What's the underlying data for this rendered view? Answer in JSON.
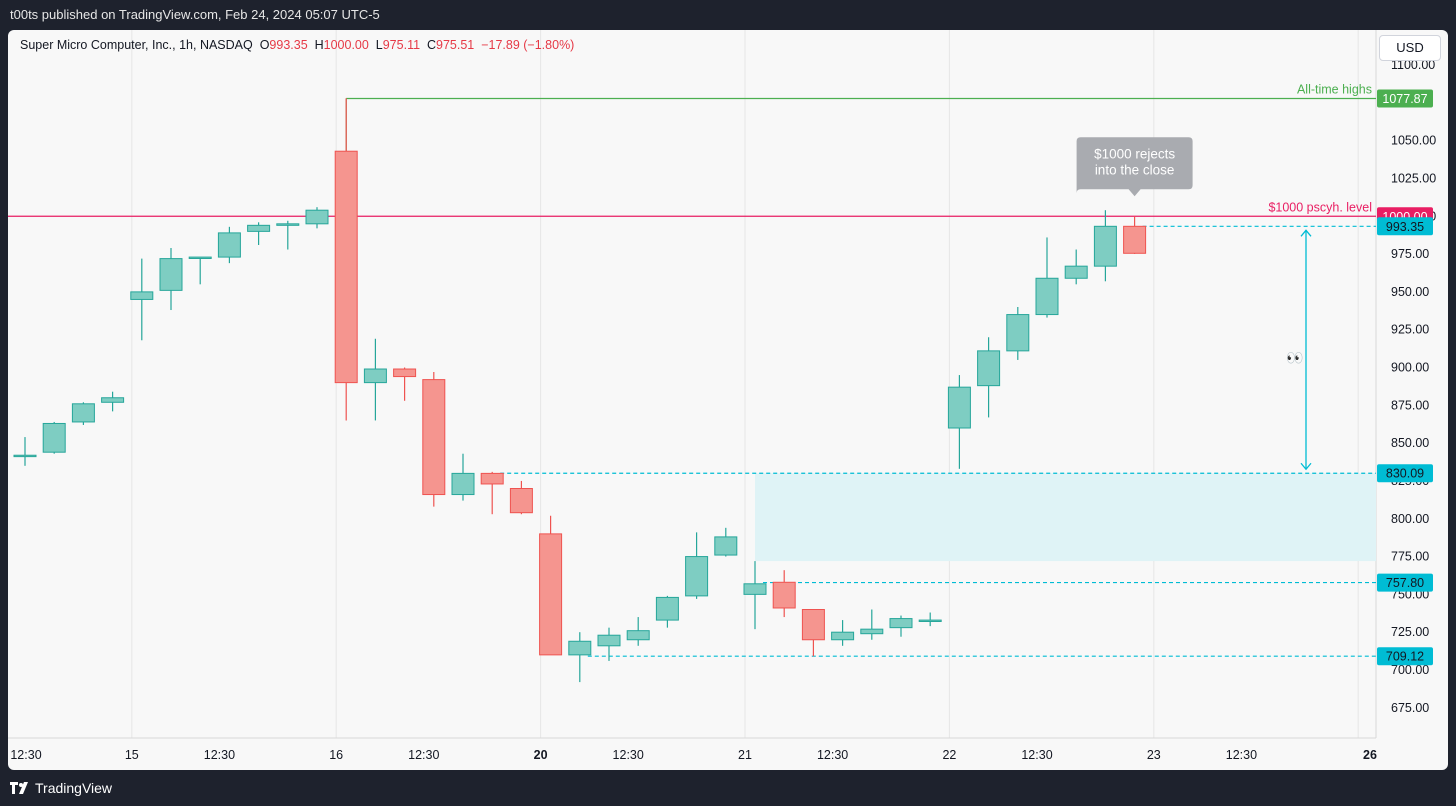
{
  "header": {
    "published": "t00ts published on TradingView.com, Feb 24, 2024 05:07 UTC-5"
  },
  "legend": {
    "symbol": "Super Micro Computer, Inc., 1h, NASDAQ",
    "o_label": "O",
    "o": "993.35",
    "h_label": "H",
    "h": "1000.00",
    "l_label": "L",
    "l": "975.11",
    "c_label": "C",
    "c": "975.51",
    "chg": "−17.89 (−1.80%)"
  },
  "currency": "USD",
  "footer": {
    "brand": "TradingView"
  },
  "colors": {
    "up": "#26a69a",
    "down": "#ef5350",
    "up_fill": "#7ecdc2",
    "down_fill": "#f5958f",
    "level": "#e91e63",
    "ath": "#4caf50",
    "cyan": "#00bcd4",
    "zone": "#dff3f6"
  },
  "chart_data": {
    "type": "candlestick",
    "title": "",
    "ylim": [
      660,
      1105
    ],
    "y_ticks": [
      675,
      700,
      725,
      750,
      775,
      800,
      825,
      850,
      875,
      900,
      925,
      950,
      975,
      1000,
      1025,
      1050,
      1100
    ],
    "y_tick_labels": [
      "675.00",
      "700.00",
      "725.00",
      "750.00",
      "775.00",
      "800.00",
      "825.00",
      "850.00",
      "875.00",
      "900.00",
      "925.00",
      "950.00",
      "975.00",
      "1000.00",
      "1025.00",
      "1050.00",
      "1100.00"
    ],
    "x_labels": [
      "12:30",
      "15",
      "12:30",
      "16",
      "12:30",
      "20",
      "12:30",
      "21",
      "12:30",
      "22",
      "12:30",
      "23",
      "12:30",
      "26"
    ],
    "x_label_index": [
      0,
      4,
      7,
      11,
      14,
      18,
      21,
      25,
      28,
      32,
      35,
      39,
      42,
      46
    ],
    "bold_x_labels": [
      "20",
      "26"
    ],
    "candles": [
      {
        "o": 842,
        "h": 854,
        "l": 835,
        "c": 842
      },
      {
        "o": 844,
        "h": 864,
        "l": 843,
        "c": 863
      },
      {
        "o": 864,
        "h": 877,
        "l": 862,
        "c": 876
      },
      {
        "o": 877,
        "h": 884,
        "l": 871,
        "c": 880
      },
      {
        "o": 945,
        "h": 972,
        "l": 918,
        "c": 950
      },
      {
        "o": 951,
        "h": 979,
        "l": 938,
        "c": 972
      },
      {
        "o": 973,
        "h": 973,
        "l": 955,
        "c": 973
      },
      {
        "o": 973,
        "h": 993,
        "l": 969,
        "c": 989
      },
      {
        "o": 990,
        "h": 996,
        "l": 981,
        "c": 994
      },
      {
        "o": 994,
        "h": 997,
        "l": 978,
        "c": 995
      },
      {
        "o": 995,
        "h": 1006,
        "l": 992,
        "c": 1004
      },
      {
        "o": 1043,
        "h": 1078,
        "l": 865,
        "c": 890
      },
      {
        "o": 890,
        "h": 919,
        "l": 865,
        "c": 899
      },
      {
        "o": 899,
        "h": 900,
        "l": 878,
        "c": 894
      },
      {
        "o": 892,
        "h": 897,
        "l": 808,
        "c": 816
      },
      {
        "o": 816,
        "h": 843,
        "l": 812,
        "c": 830
      },
      {
        "o": 830,
        "h": 831,
        "l": 803,
        "c": 823
      },
      {
        "o": 820,
        "h": 825,
        "l": 803,
        "c": 804
      },
      {
        "o": 790,
        "h": 802,
        "l": 710,
        "c": 710
      },
      {
        "o": 710,
        "h": 725,
        "l": 692,
        "c": 719
      },
      {
        "o": 716,
        "h": 728,
        "l": 706,
        "c": 723
      },
      {
        "o": 720,
        "h": 735,
        "l": 716,
        "c": 726
      },
      {
        "o": 733,
        "h": 749,
        "l": 728,
        "c": 748
      },
      {
        "o": 749,
        "h": 791,
        "l": 747,
        "c": 775
      },
      {
        "o": 776,
        "h": 794,
        "l": 775,
        "c": 788
      },
      {
        "o": 750,
        "h": 772,
        "l": 727,
        "c": 757
      },
      {
        "o": 758,
        "h": 766,
        "l": 735,
        "c": 741
      },
      {
        "o": 740,
        "h": 740,
        "l": 709,
        "c": 720
      },
      {
        "o": 720,
        "h": 733,
        "l": 716,
        "c": 725
      },
      {
        "o": 724,
        "h": 740,
        "l": 720,
        "c": 727
      },
      {
        "o": 728,
        "h": 736,
        "l": 722,
        "c": 734
      },
      {
        "o": 733,
        "h": 738,
        "l": 729,
        "c": 733
      },
      {
        "o": 860,
        "h": 895,
        "l": 833,
        "c": 887
      },
      {
        "o": 888,
        "h": 920,
        "l": 867,
        "c": 911
      },
      {
        "o": 911,
        "h": 940,
        "l": 905,
        "c": 935
      },
      {
        "o": 935,
        "h": 986,
        "l": 933,
        "c": 959
      },
      {
        "o": 959,
        "h": 978,
        "l": 955,
        "c": 967
      },
      {
        "o": 967,
        "h": 1004,
        "l": 957,
        "c": 993.35
      },
      {
        "o": 993.35,
        "h": 1000,
        "l": 975.11,
        "c": 975.51
      }
    ],
    "candle_index": [
      0,
      1,
      2,
      3,
      4,
      5,
      6,
      7,
      8,
      9,
      10,
      11,
      12,
      13,
      14,
      15,
      16,
      17,
      18,
      19,
      20,
      21,
      22,
      23,
      24,
      25,
      26,
      27,
      28,
      29,
      30,
      31,
      32,
      33,
      34,
      35,
      36,
      37,
      38
    ],
    "levels": [
      {
        "value": 1077.87,
        "label": "All-time highs",
        "tag": "1077.87",
        "style": "solid",
        "color": "#4caf50",
        "tag_bg": "#4caf50",
        "start_index": 11
      },
      {
        "value": 1000.0,
        "label": "$1000 pscyh. level",
        "tag": "1000.00",
        "style": "solid",
        "color": "#e91e63",
        "tag_bg": "#e91e63",
        "start_index": -1
      },
      {
        "value": 993.35,
        "label": "",
        "tag": "993.35",
        "style": "dashed",
        "color": "#00bcd4",
        "tag_bg": "#00bcd4",
        "start_index": 38
      },
      {
        "value": 830.09,
        "label": "",
        "tag": "830.09",
        "style": "dashed",
        "color": "#00bcd4",
        "tag_bg": "#00bcd4",
        "start_index": 16
      },
      {
        "value": 757.8,
        "label": "",
        "tag": "757.80",
        "style": "dashed",
        "color": "#00bcd4",
        "tag_bg": "#00bcd4",
        "start_index": 25
      },
      {
        "value": 709.12,
        "label": "",
        "tag": "709.12",
        "style": "dashed",
        "color": "#00bcd4",
        "tag_bg": "#00bcd4",
        "start_index": 19
      }
    ],
    "zone": {
      "from": 772,
      "to": 830.09,
      "start_index": 25
    },
    "measure_arrow": {
      "from": 993.35,
      "to": 830.09
    },
    "annotation": {
      "text_line1": "$1000 rejects",
      "text_line2": "into the close",
      "anchor_value": 1000,
      "anchor_index": 38
    },
    "emoji": "👀"
  }
}
